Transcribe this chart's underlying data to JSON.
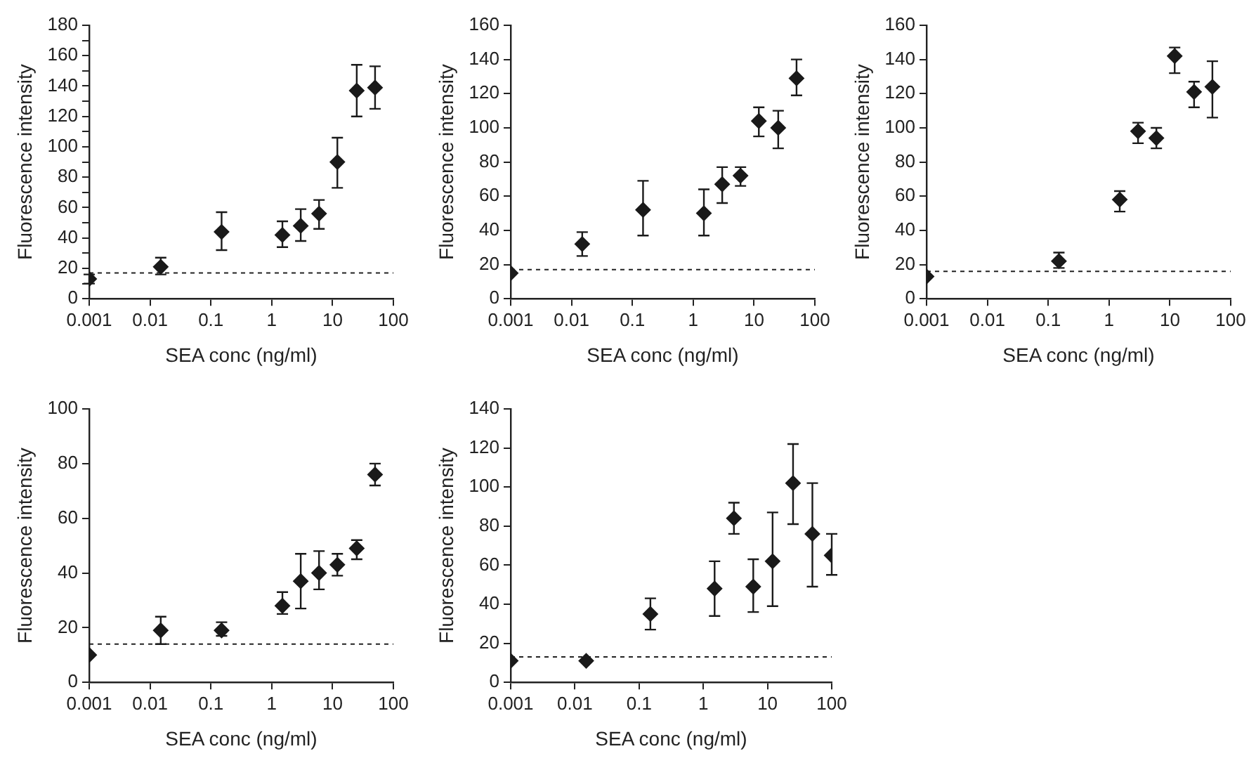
{
  "chart_data": [
    {
      "type": "scatter",
      "xlabel": "SEA conc (ng/ml)",
      "ylabel": "Fluorescence intensity",
      "log": "x",
      "marker": "diamond",
      "color": "#1a1a1a",
      "grid": false,
      "legend": false,
      "xlim": [
        0.001,
        100
      ],
      "xticks": [
        0.001,
        0.01,
        0.1,
        1,
        10,
        100
      ],
      "ylim": [
        0,
        180
      ],
      "yticks": [
        0,
        {
          "value": 10,
          "label": null
        },
        20,
        {
          "value": 30,
          "label": null
        },
        40,
        {
          "value": 50,
          "label": null
        },
        60,
        {
          "value": 70,
          "label": null
        },
        80,
        {
          "value": 90,
          "label": null
        },
        100,
        {
          "value": 110,
          "label": null
        },
        120,
        {
          "value": 130,
          "label": null
        },
        140,
        {
          "value": 150,
          "label": null
        },
        160,
        {
          "value": 170,
          "label": null
        },
        180
      ],
      "x": [
        0.001,
        0.015,
        0.15,
        1.5,
        3,
        6,
        12,
        25,
        50
      ],
      "values": [
        13,
        21,
        44,
        42,
        48,
        56,
        90,
        137,
        139
      ],
      "errors": [
        [
          10,
          16
        ],
        [
          16,
          27
        ],
        [
          32,
          57
        ],
        [
          34,
          51
        ],
        [
          38,
          59
        ],
        [
          46,
          65
        ],
        [
          73,
          106
        ],
        [
          120,
          154
        ],
        [
          125,
          153
        ]
      ],
      "ref_lines": [
        {
          "axis": "y",
          "value": 17,
          "line_style": "dashed"
        }
      ]
    },
    {
      "type": "scatter",
      "xlabel": "SEA conc (ng/ml)",
      "ylabel": "Fluorescence intensity",
      "log": "x",
      "marker": "diamond",
      "color": "#1a1a1a",
      "grid": false,
      "legend": false,
      "xlim": [
        0.001,
        100
      ],
      "xticks": [
        0.001,
        0.01,
        0.1,
        1,
        10,
        100
      ],
      "ylim": [
        0,
        160
      ],
      "yticks": [
        0,
        20,
        40,
        60,
        80,
        100,
        120,
        140,
        160
      ],
      "x": [
        0.001,
        0.015,
        0.15,
        1.5,
        3,
        6,
        12,
        25,
        50
      ],
      "values": [
        15,
        32,
        52,
        50,
        67,
        72,
        104,
        100,
        129
      ],
      "errors": [
        null,
        [
          25,
          39
        ],
        [
          37,
          69
        ],
        [
          37,
          64
        ],
        [
          56,
          77
        ],
        [
          66,
          77
        ],
        [
          95,
          112
        ],
        [
          88,
          110
        ],
        [
          119,
          140
        ]
      ],
      "ref_lines": [
        {
          "axis": "y",
          "value": 17,
          "line_style": "dashed"
        }
      ]
    },
    {
      "type": "scatter",
      "xlabel": "SEA conc (ng/ml)",
      "ylabel": "Fluorescence intensity",
      "log": "x",
      "marker": "diamond",
      "color": "#1a1a1a",
      "grid": false,
      "legend": false,
      "xlim": [
        0.001,
        100
      ],
      "xticks": [
        0.001,
        0.01,
        0.1,
        1,
        10,
        100
      ],
      "ylim": [
        0,
        160
      ],
      "yticks": [
        0,
        20,
        40,
        60,
        80,
        100,
        120,
        140,
        160
      ],
      "x": [
        0.001,
        0.15,
        1.5,
        3,
        6,
        12,
        25,
        50
      ],
      "values": [
        13,
        22,
        58,
        98,
        94,
        142,
        121,
        124
      ],
      "errors": [
        null,
        [
          18,
          27
        ],
        [
          51,
          63
        ],
        [
          91,
          103
        ],
        [
          88,
          100
        ],
        [
          132,
          147
        ],
        [
          112,
          127
        ],
        [
          106,
          139
        ]
      ],
      "ref_lines": [
        {
          "axis": "y",
          "value": 16,
          "line_style": "dashed"
        }
      ]
    },
    {
      "type": "scatter",
      "xlabel": "SEA conc (ng/ml)",
      "ylabel": "Fluorescence intensity",
      "log": "x",
      "marker": "diamond",
      "color": "#1a1a1a",
      "grid": false,
      "legend": false,
      "xlim": [
        0.001,
        100
      ],
      "xticks": [
        0.001,
        0.01,
        0.1,
        1,
        10,
        100
      ],
      "ylim": [
        0,
        100
      ],
      "yticks": [
        0,
        20,
        40,
        60,
        80,
        100
      ],
      "x": [
        0.001,
        0.015,
        0.15,
        1.5,
        3,
        6,
        12,
        25,
        50
      ],
      "values": [
        10,
        19,
        19,
        28,
        37,
        40,
        43,
        49,
        76
      ],
      "errors": [
        null,
        [
          14,
          24
        ],
        [
          17,
          22
        ],
        [
          25,
          33
        ],
        [
          27,
          47
        ],
        [
          34,
          48
        ],
        [
          39,
          47
        ],
        [
          45,
          52
        ],
        [
          72,
          80
        ]
      ],
      "ref_lines": [
        {
          "axis": "y",
          "value": 14,
          "line_style": "dashed"
        }
      ]
    },
    {
      "type": "scatter",
      "xlabel": "SEA conc (ng/ml)",
      "ylabel": "Fluorescence intensity",
      "log": "x",
      "marker": "diamond",
      "color": "#1a1a1a",
      "grid": false,
      "legend": false,
      "xlim": [
        0.001,
        100
      ],
      "xticks": [
        0.001,
        0.01,
        0.1,
        1,
        10,
        100
      ],
      "ylim": [
        0,
        140
      ],
      "yticks": [
        0,
        20,
        40,
        60,
        80,
        100,
        120,
        140
      ],
      "x": [
        0.001,
        0.015,
        0.15,
        1.5,
        3,
        6,
        12,
        25,
        50,
        100
      ],
      "values": [
        11,
        11,
        35,
        48,
        84,
        49,
        62,
        102,
        76,
        65
      ],
      "errors": [
        null,
        null,
        [
          27,
          43
        ],
        [
          34,
          62
        ],
        [
          76,
          92
        ],
        [
          36,
          63
        ],
        [
          39,
          87
        ],
        [
          81,
          122
        ],
        [
          49,
          102
        ],
        [
          55,
          76
        ]
      ],
      "ref_lines": [
        {
          "axis": "y",
          "value": 13,
          "line_style": "dashed"
        }
      ]
    }
  ]
}
